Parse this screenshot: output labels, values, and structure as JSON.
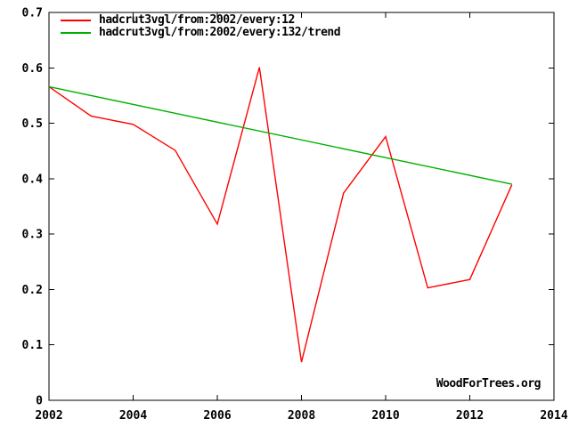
{
  "watermark": "WoodForTrees.org",
  "colors": {
    "background": "#ffffff",
    "axis": "#000000",
    "text": "#000000",
    "series_red": "#ff0000",
    "series_green": "#00b000"
  },
  "chart_data": {
    "type": "line",
    "title": "",
    "xlabel": "",
    "ylabel": "",
    "xlim": [
      2002,
      2014
    ],
    "ylim": [
      0,
      0.7
    ],
    "xticks": [
      2002,
      2004,
      2006,
      2008,
      2010,
      2012,
      2014
    ],
    "xtick_labels": [
      "2002",
      "2004",
      "2006",
      "2008",
      "2010",
      "2012",
      "2014"
    ],
    "yticks": [
      0,
      0.1,
      0.2,
      0.3,
      0.4,
      0.5,
      0.6,
      0.7
    ],
    "ytick_labels": [
      "0",
      "0.1",
      "0.2",
      "0.3",
      "0.4",
      "0.5",
      "0.6",
      "0.7"
    ],
    "grid": false,
    "ticks_mirrored_inward": true,
    "legend_position": "top-left-inside",
    "series": [
      {
        "name": "hadcrut3vgl/from:2002/every:12",
        "color": "#ff0000",
        "x": [
          2002,
          2003,
          2004,
          2005,
          2006,
          2007,
          2008,
          2009,
          2010,
          2011,
          2012,
          2013
        ],
        "y": [
          0.566,
          0.513,
          0.498,
          0.451,
          0.318,
          0.601,
          0.069,
          0.374,
          0.476,
          0.203,
          0.218,
          0.389
        ]
      },
      {
        "name": "hadcrut3vgl/from:2002/every:132/trend",
        "color": "#00b000",
        "x": [
          2002,
          2013
        ],
        "y": [
          0.566,
          0.39
        ]
      }
    ]
  }
}
